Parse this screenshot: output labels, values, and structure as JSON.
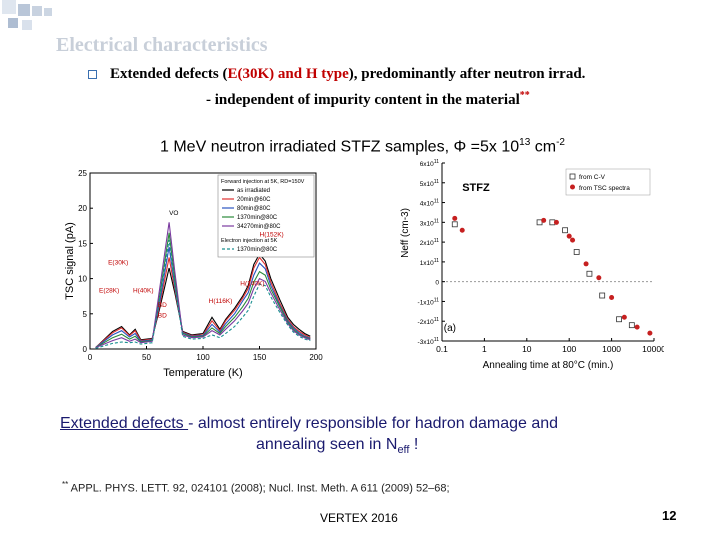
{
  "slide": {
    "title": "Electrical characteristics",
    "bullet": {
      "pre": "Extended defects (",
      "highlight": "E(30K) and H type",
      "post": "), predominantly after neutron irrad."
    },
    "subline": {
      "text": "- independent of impurity content in the material",
      "marker": "**"
    },
    "heading": {
      "pre": "1 MeV neutron irradiated STFZ samples, ",
      "phi": "Φ",
      "mid": " =5x 10",
      "exp": "13",
      "unit": " cm",
      "unit_exp": "-2"
    },
    "summary": {
      "underlined": "Extended defects ",
      "rest": "- almost entirely responsible for hadron damage and",
      "line2": "annealing seen in N",
      "line2_sub": "eff",
      "line2_end": " !"
    },
    "reference": {
      "marker": "**",
      "text": " APPL. PHYS. LETT. 92, 024101 (2008); Nucl. Inst. Meth. A 611 (2009) 52–68;"
    },
    "footer": {
      "conference": "VERTEX 2016",
      "page": "12"
    }
  },
  "chart_data": [
    {
      "type": "line",
      "xlabel": "Temperature (K)",
      "ylabel": "TSC signal (pA)",
      "xlim": [
        0,
        200
      ],
      "ylim": [
        0,
        25
      ],
      "xticks": [
        "0",
        "50",
        "100",
        "150",
        "200"
      ],
      "yticks": [
        "0",
        "5",
        "10",
        "15",
        "20",
        "25"
      ],
      "legend": {
        "position": "top-right",
        "header": "Forward injection at 5K, RD=150V",
        "entries": [
          "as irradiated",
          "20min@60C",
          "80min@80C",
          "1370min@80C",
          "34270min@80C"
        ],
        "footer": "Electron injection at 5K",
        "footer_entry": "1370min@80C"
      },
      "annotations": [
        "VO",
        "E(30K)",
        "E(28K)",
        "H(40K)",
        "BD",
        "BD",
        "H(116K)",
        "H(140K)",
        "H(152K)"
      ],
      "series": [
        {
          "name": "as irradiated",
          "color": "#000000",
          "x": [
            5,
            20,
            28,
            35,
            40,
            45,
            55,
            62,
            70,
            75,
            82,
            90,
            100,
            108,
            115,
            120,
            128,
            135,
            140,
            145,
            150,
            155,
            160,
            168,
            175,
            180,
            185,
            190,
            195
          ],
          "y": [
            0.2,
            2.5,
            3.2,
            2.0,
            2.8,
            1.3,
            1.5,
            6.0,
            11.5,
            8.0,
            2.5,
            2.0,
            2.2,
            4.5,
            2.8,
            4.2,
            5.8,
            7.5,
            9.0,
            12.0,
            13.5,
            12.5,
            10.0,
            7.0,
            4.5,
            3.5,
            2.8,
            2.2,
            1.8
          ]
        },
        {
          "name": "20min@60C",
          "color": "#e03030",
          "x": [
            5,
            20,
            28,
            35,
            40,
            45,
            55,
            62,
            70,
            75,
            82,
            90,
            100,
            108,
            115,
            120,
            128,
            135,
            140,
            145,
            150,
            155,
            160,
            168,
            175,
            180,
            185,
            190,
            195
          ],
          "y": [
            0.2,
            2.3,
            3.0,
            1.9,
            2.6,
            1.2,
            1.4,
            6.5,
            13.0,
            8.5,
            2.4,
            1.9,
            2.0,
            4.0,
            2.6,
            4.0,
            5.5,
            7.2,
            8.6,
            11.5,
            13.0,
            12.0,
            9.5,
            6.5,
            4.2,
            3.2,
            2.5,
            2.0,
            1.6
          ]
        },
        {
          "name": "80min@80C",
          "color": "#2a55c0",
          "x": [
            5,
            20,
            28,
            35,
            40,
            45,
            55,
            62,
            70,
            75,
            82,
            90,
            100,
            108,
            115,
            120,
            128,
            135,
            140,
            145,
            150,
            155,
            160,
            168,
            175,
            180,
            185,
            190,
            195
          ],
          "y": [
            0.2,
            2.0,
            2.6,
            1.7,
            2.2,
            1.1,
            1.3,
            7.0,
            14.5,
            9.0,
            2.3,
            1.8,
            1.9,
            3.5,
            2.4,
            3.6,
            5.0,
            6.8,
            8.0,
            10.5,
            12.2,
            11.4,
            9.0,
            6.2,
            4.0,
            3.0,
            2.3,
            1.8,
            1.5
          ]
        },
        {
          "name": "1370min@80C",
          "color": "#2a8a3a",
          "x": [
            5,
            20,
            28,
            35,
            40,
            45,
            55,
            62,
            70,
            75,
            82,
            90,
            100,
            108,
            115,
            120,
            128,
            135,
            140,
            145,
            150,
            155,
            160,
            168,
            175,
            180,
            185,
            190,
            195
          ],
          "y": [
            0.2,
            1.6,
            2.1,
            1.4,
            1.8,
            1.0,
            1.2,
            8.0,
            16.5,
            10.0,
            2.2,
            1.7,
            1.8,
            3.0,
            2.2,
            3.2,
            4.5,
            6.0,
            7.2,
            9.5,
            11.0,
            10.5,
            8.5,
            6.0,
            3.8,
            2.8,
            2.1,
            1.7,
            1.4
          ]
        },
        {
          "name": "34270min@80C",
          "color": "#7a3aa0",
          "x": [
            5,
            20,
            28,
            35,
            40,
            45,
            55,
            62,
            70,
            75,
            82,
            90,
            100,
            108,
            115,
            120,
            128,
            135,
            140,
            145,
            150,
            155,
            160,
            168,
            175,
            180,
            185,
            190,
            195
          ],
          "y": [
            0.2,
            1.2,
            1.6,
            1.1,
            1.4,
            0.9,
            1.1,
            9.0,
            18.0,
            11.0,
            2.0,
            1.6,
            1.7,
            2.6,
            2.0,
            2.8,
            4.0,
            5.4,
            6.5,
            8.6,
            10.0,
            9.6,
            8.0,
            5.6,
            3.6,
            2.6,
            2.0,
            1.6,
            1.3
          ]
        },
        {
          "name": "1370min@80C",
          "color": "#1a9090",
          "x": [
            5,
            20,
            28,
            35,
            40,
            45,
            55,
            62,
            70,
            75,
            82,
            90,
            100,
            108,
            115,
            120,
            128,
            135,
            140,
            145,
            150,
            155,
            160,
            168,
            175,
            180,
            185,
            190,
            195
          ],
          "y": [
            0.1,
            0.8,
            1.0,
            0.9,
            1.0,
            0.7,
            0.9,
            7.5,
            15.5,
            9.0,
            1.8,
            1.4,
            1.5,
            2.0,
            1.6,
            2.2,
            3.2,
            4.5,
            5.5,
            7.5,
            9.2,
            9.0,
            7.4,
            5.2,
            3.4,
            2.4,
            1.8,
            1.4,
            1.2
          ]
        }
      ]
    },
    {
      "type": "scatter",
      "xlabel": "Annealing time at 80°C (min.)",
      "ylabel": "Neff (cm-3)",
      "xscale": "log",
      "xlim": [
        0.1,
        10000
      ],
      "ylim": [
        -300000000000.0,
        600000000000.0
      ],
      "xticks": [
        "0.1",
        "1",
        "10",
        "100",
        "1000",
        "10000"
      ],
      "yticks": [
        "6x10^11",
        "5x10^11",
        "4x10^11",
        "3x10^11",
        "2x10^11",
        "1x10^11",
        "0",
        "-1x10^11",
        "-2x10^11",
        "-3x10^11"
      ],
      "panel_label": "(a)",
      "sample_label": "STFZ",
      "legend": {
        "position": "top-right",
        "entries": [
          "from C-V",
          "from TSC spectra"
        ]
      },
      "series": [
        {
          "name": "from C-V",
          "marker": "open-square",
          "color": "#333333",
          "x": [
            0.2,
            20,
            40,
            80,
            150,
            300,
            600,
            1500,
            3000
          ],
          "y": [
            290000000000.0,
            300000000000.0,
            300000000000.0,
            260000000000.0,
            150000000000.0,
            40000000000.0,
            -70000000000.0,
            -190000000000.0,
            -220000000000.0
          ]
        },
        {
          "name": "from TSC spectra",
          "marker": "filled-circle",
          "color": "#c62020",
          "x": [
            0.2,
            0.3,
            25,
            50,
            100,
            120,
            250,
            500,
            1000,
            2000,
            4000,
            8000
          ],
          "y": [
            320000000000.0,
            260000000000.0,
            310000000000.0,
            300000000000.0,
            230000000000.0,
            210000000000.0,
            90000000000.0,
            20000000000.0,
            -80000000000.0,
            -180000000000.0,
            -230000000000.0,
            -260000000000.0
          ]
        }
      ]
    }
  ]
}
